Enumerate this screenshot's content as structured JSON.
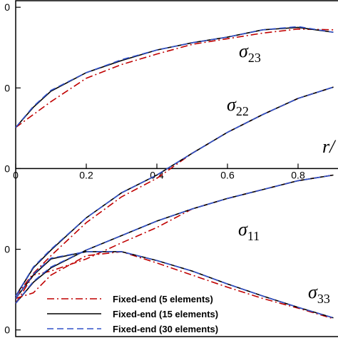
{
  "chart_data": {
    "type": "line",
    "x_label": "r/",
    "x": [
      0,
      0.05,
      0.1,
      0.2,
      0.3,
      0.4,
      0.5,
      0.6,
      0.7,
      0.8,
      0.9
    ],
    "xlim": [
      0,
      0.913
    ],
    "xticks": [
      0,
      0.2,
      0.4,
      0.6,
      0.8
    ],
    "ylim": [
      -2.1,
      2.09
    ],
    "yticks": [
      {
        "value": 2,
        "label": "0"
      },
      {
        "value": 1,
        "label": "0"
      },
      0,
      {
        "value": -1,
        "label": "0"
      },
      {
        "value": -2,
        "label": "0"
      }
    ],
    "legend": [
      {
        "name": "Fixed-end (5 elements)",
        "color": "#c00000",
        "dash": "dashdot"
      },
      {
        "name": "Fixed-end (15 elements)",
        "color": "#000000",
        "dash": "solid"
      },
      {
        "name": "Fixed-end (30 elements)",
        "color": "#3050c8",
        "dash": "dashed"
      }
    ],
    "curves": [
      {
        "symbol": "σ",
        "subscript": "23",
        "values": [
          [
            0.51,
            0.67,
            0.83,
            1.12,
            1.29,
            1.42,
            1.54,
            1.61,
            1.68,
            1.73,
            1.72
          ],
          [
            0.51,
            0.76,
            0.96,
            1.19,
            1.34,
            1.47,
            1.56,
            1.63,
            1.72,
            1.75,
            1.69
          ],
          [
            0.51,
            0.77,
            0.97,
            1.19,
            1.35,
            1.47,
            1.56,
            1.63,
            1.72,
            1.76,
            1.69
          ]
        ]
      },
      {
        "symbol": "σ",
        "subscript": "22",
        "values": [
          [
            -1.58,
            -1.3,
            -1.08,
            -0.67,
            -0.35,
            -0.12,
            0.19,
            0.45,
            0.67,
            0.87,
            1.01
          ],
          [
            -1.58,
            -1.23,
            -1.01,
            -0.61,
            -0.3,
            -0.08,
            0.19,
            0.45,
            0.67,
            0.87,
            1.01
          ],
          [
            -1.58,
            -1.22,
            -1.0,
            -0.61,
            -0.3,
            -0.08,
            0.19,
            0.45,
            0.67,
            0.87,
            1.01
          ]
        ]
      },
      {
        "symbol": "σ",
        "subscript": "11",
        "values": [
          [
            -1.67,
            -1.32,
            -1.27,
            -1.12,
            -0.92,
            -0.73,
            -0.5,
            -0.37,
            -0.26,
            -0.15,
            -0.08
          ],
          [
            -1.67,
            -1.41,
            -1.23,
            -1.01,
            -0.83,
            -0.65,
            -0.5,
            -0.37,
            -0.26,
            -0.15,
            -0.08
          ],
          [
            -1.67,
            -1.4,
            -1.22,
            -1.01,
            -0.83,
            -0.65,
            -0.5,
            -0.37,
            -0.26,
            -0.15,
            -0.08
          ]
        ]
      },
      {
        "symbol": "σ",
        "subscript": "33",
        "values": [
          [
            -1.61,
            -1.54,
            -1.32,
            -1.08,
            -1.03,
            -1.17,
            -1.32,
            -1.47,
            -1.61,
            -1.73,
            -1.86
          ],
          [
            -1.61,
            -1.32,
            -1.12,
            -1.03,
            -1.03,
            -1.14,
            -1.27,
            -1.43,
            -1.58,
            -1.72,
            -1.85
          ],
          [
            -1.61,
            -1.31,
            -1.11,
            -1.03,
            -1.03,
            -1.14,
            -1.27,
            -1.43,
            -1.58,
            -1.72,
            -1.85
          ]
        ]
      }
    ]
  }
}
